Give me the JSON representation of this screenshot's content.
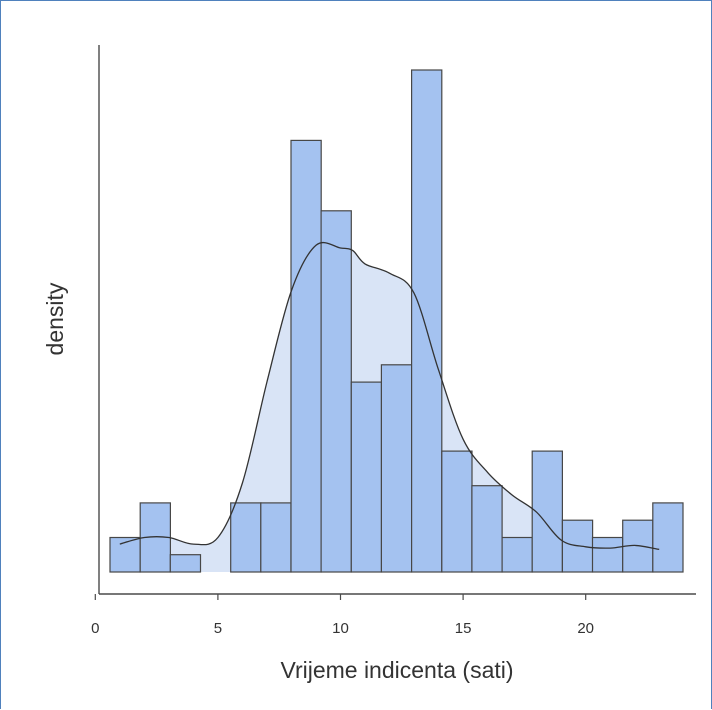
{
  "chart_data": {
    "type": "bar",
    "subtype": "histogram-with-density",
    "xlabel": "Vrijeme indicenta (sati)",
    "ylabel": "density",
    "xlim": [
      0.15,
      24.5
    ],
    "x_ticks": [
      0,
      5,
      10,
      15,
      20
    ],
    "y_ticks": [],
    "grid": false,
    "legend": "none",
    "colors": {
      "bar_fill": "#a4c2f0",
      "bar_stroke": "#474747",
      "density_fill": "#d9e4f6",
      "density_line": "#333333",
      "axis": "#4a4a4a"
    },
    "bins": [
      {
        "start": 0.6,
        "end": 1.83,
        "value": 0.026
      },
      {
        "start": 1.83,
        "end": 3.06,
        "value": 0.052
      },
      {
        "start": 3.06,
        "end": 4.29,
        "value": 0.013
      },
      {
        "start": 4.29,
        "end": 5.52,
        "value": 0.0
      },
      {
        "start": 5.52,
        "end": 6.75,
        "value": 0.052
      },
      {
        "start": 6.75,
        "end": 7.98,
        "value": 0.052
      },
      {
        "start": 7.98,
        "end": 9.21,
        "value": 0.325
      },
      {
        "start": 9.21,
        "end": 10.44,
        "value": 0.272
      },
      {
        "start": 10.44,
        "end": 11.67,
        "value": 0.143
      },
      {
        "start": 11.67,
        "end": 12.9,
        "value": 0.156
      },
      {
        "start": 12.9,
        "end": 14.13,
        "value": 0.378
      },
      {
        "start": 14.13,
        "end": 15.36,
        "value": 0.091
      },
      {
        "start": 15.36,
        "end": 16.59,
        "value": 0.065
      },
      {
        "start": 16.59,
        "end": 17.82,
        "value": 0.026
      },
      {
        "start": 17.82,
        "end": 19.05,
        "value": 0.091
      },
      {
        "start": 19.05,
        "end": 20.28,
        "value": 0.039
      },
      {
        "start": 20.28,
        "end": 21.51,
        "value": 0.026
      },
      {
        "start": 21.51,
        "end": 22.74,
        "value": 0.039
      },
      {
        "start": 22.74,
        "end": 23.97,
        "value": 0.052
      }
    ],
    "density": {
      "x": [
        1.0,
        2.0,
        3.0,
        4.0,
        5.0,
        6.0,
        7.0,
        8.0,
        9.0,
        10.0,
        10.5,
        11.0,
        12.0,
        13.0,
        14.0,
        15.0,
        16.0,
        17.0,
        18.0,
        19.0,
        20.0,
        21.0,
        22.0,
        23.0
      ],
      "y": [
        0.021,
        0.026,
        0.026,
        0.021,
        0.026,
        0.067,
        0.143,
        0.212,
        0.246,
        0.244,
        0.242,
        0.232,
        0.225,
        0.21,
        0.152,
        0.1,
        0.075,
        0.058,
        0.045,
        0.024,
        0.019,
        0.018,
        0.02,
        0.017
      ]
    },
    "ylim": [
      0,
      0.378
    ]
  }
}
